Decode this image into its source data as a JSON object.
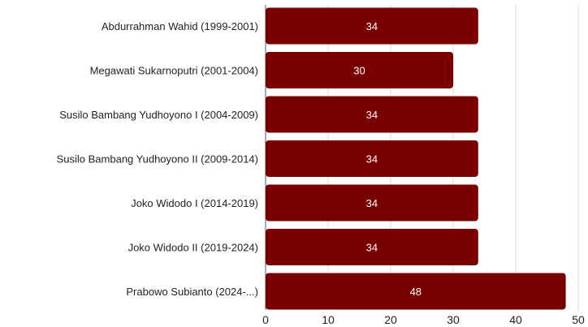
{
  "chart_data": {
    "type": "bar",
    "orientation": "horizontal",
    "categories": [
      "Abdurrahman Wahid (1999-2001)",
      "Megawati Sukarnoputri (2001-2004)",
      "Susilo Bambang Yudhoyono I (2004-2009)",
      "Susilo Bambang Yudhoyono II (2009-2014)",
      "Joko Widodo I (2014-2019)",
      "Joko Widodo II (2019-2024)",
      "Prabowo Subianto (2024-...)"
    ],
    "values": [
      34,
      30,
      34,
      34,
      34,
      34,
      48
    ],
    "xlim": [
      0,
      50
    ],
    "xticks": [
      0,
      10,
      20,
      30,
      40,
      50
    ],
    "grid": "vertical",
    "bar_color": "#7a0000",
    "label_color": "#ffffff"
  }
}
